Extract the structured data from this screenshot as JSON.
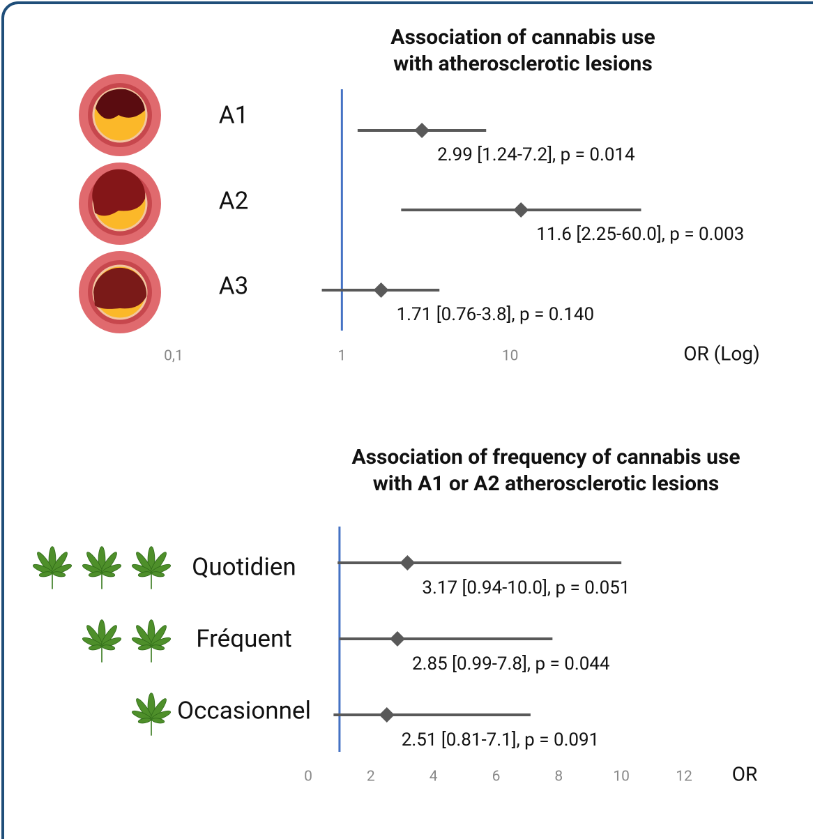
{
  "chart_data": [
    {
      "type": "forest",
      "title": "Association of cannabis use with atherosclerotic lesions",
      "categories": [
        "A1",
        "A2",
        "A3"
      ],
      "values": [
        2.99,
        11.6,
        1.71
      ],
      "lower": [
        1.24,
        2.25,
        0.76
      ],
      "upper": [
        7.2,
        60.0,
        3.8
      ],
      "annotations": [
        "2.99 [1.24-7.2], p = 0.014",
        "11.6 [2.25-60.0], p = 0.003",
        "1.71 [0.76-3.8], p = 0.140"
      ],
      "xlabel": "OR (Log)",
      "log_x": true,
      "xlim": [
        0.1,
        100
      ],
      "xticks": [
        {
          "value": 0.1,
          "label": "0,1"
        },
        1,
        10
      ],
      "reference_line": 1,
      "reference_color": "#4472c4",
      "color": "#595959"
    },
    {
      "type": "forest",
      "title": "Association of frequency of cannabis use with A1 or A2 atherosclerotic lesions",
      "categories": [
        "Quotidien",
        "Fréquent",
        "Occasionnel"
      ],
      "values": [
        3.17,
        2.85,
        2.51
      ],
      "lower": [
        0.94,
        0.99,
        0.81
      ],
      "upper": [
        10.0,
        7.8,
        7.1
      ],
      "annotations": [
        "3.17  [0.94-10.0], p = 0.051",
        "2.85 [0.99-7.8], p = 0.044",
        "2.51 [0.81-7.1], p = 0.091"
      ],
      "xlabel": "OR",
      "log_x": false,
      "xlim": [
        0,
        12
      ],
      "xticks": [
        0,
        2,
        4,
        6,
        8,
        10,
        12
      ],
      "reference_line": 1,
      "reference_color": "#4472c4",
      "color": "#595959"
    }
  ]
}
